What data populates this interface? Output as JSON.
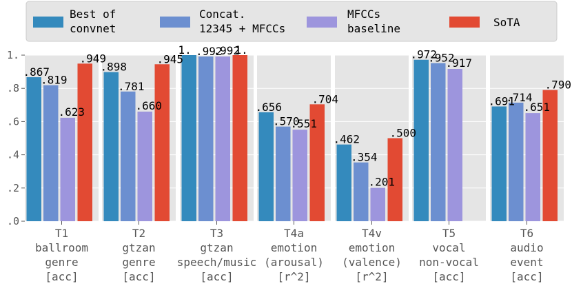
{
  "chart_data": {
    "type": "bar",
    "ylim": [
      0,
      1.0
    ],
    "yticks": [
      {
        "value": 0.0,
        "label": ".0"
      },
      {
        "value": 0.2,
        "label": ".2"
      },
      {
        "value": 0.4,
        "label": ".4"
      },
      {
        "value": 0.6,
        "label": ".6"
      },
      {
        "value": 0.8,
        "label": ".8"
      },
      {
        "value": 1.0,
        "label": "1."
      }
    ],
    "grid": true,
    "legend_position": "top",
    "categories": [
      {
        "lines": [
          "T1",
          "ballroom",
          "genre",
          "[acc]"
        ]
      },
      {
        "lines": [
          "T2",
          "gtzan",
          "genre",
          "[acc]"
        ]
      },
      {
        "lines": [
          "T3",
          "gtzan",
          "speech/music",
          "[acc]"
        ]
      },
      {
        "lines": [
          "T4a",
          "emotion",
          "(arousal)",
          "[r^2]"
        ]
      },
      {
        "lines": [
          "T4v",
          "emotion",
          "(valence)",
          "[r^2]"
        ]
      },
      {
        "lines": [
          "T5",
          "vocal",
          "non-vocal",
          "[acc]"
        ]
      },
      {
        "lines": [
          "T6",
          "audio",
          "event",
          "[acc]"
        ]
      }
    ],
    "series": [
      {
        "name_lines": [
          "Best of",
          "convnet"
        ],
        "color": "#348ABD",
        "values": [
          0.867,
          0.898,
          1.0,
          0.656,
          0.462,
          0.972,
          0.691
        ],
        "labels": [
          ".867",
          ".898",
          "1.",
          ".656",
          ".462",
          ".972",
          ".691"
        ]
      },
      {
        "name_lines": [
          "Concat.",
          "12345 + MFCCs"
        ],
        "color": "#6C8FD0",
        "values": [
          0.819,
          0.781,
          0.992,
          0.57,
          0.354,
          0.952,
          0.714
        ],
        "labels": [
          ".819",
          ".781",
          ".992",
          ".570",
          ".354",
          ".952",
          ".714"
        ]
      },
      {
        "name_lines": [
          "MFCCs",
          "baseline"
        ],
        "color": "#9D95DD",
        "values": [
          0.623,
          0.66,
          0.992,
          0.551,
          0.201,
          0.917,
          0.651
        ],
        "labels": [
          ".623",
          ".660",
          ".992",
          ".551",
          ".201",
          ".917",
          ".651"
        ]
      },
      {
        "name_lines": [
          "SoTA"
        ],
        "color": "#E24A33",
        "values": [
          0.949,
          0.945,
          1.0,
          0.704,
          0.5,
          null,
          0.79
        ],
        "labels": [
          ".949",
          ".945",
          "1.",
          ".704",
          ".500",
          "",
          ".790"
        ]
      }
    ]
  }
}
